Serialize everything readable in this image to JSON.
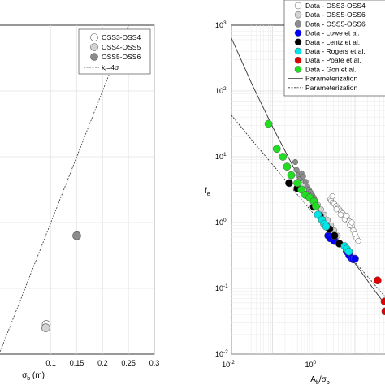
{
  "chart_data": [
    {
      "type": "scatter",
      "xlabel_symbol": "σ",
      "xlabel_subscript": "b",
      "xlabel_unit": " (m)",
      "xlim": [
        0,
        0.3
      ],
      "ylim": [
        0,
        1
      ],
      "x_ticks": [
        0.1,
        0.15,
        0.2,
        0.25,
        0.3
      ],
      "x_tick_labels": [
        "0.1",
        "0.15",
        "0.2",
        "0.25",
        "0.3"
      ],
      "grid": true,
      "legend_position": "top-right",
      "series": [
        {
          "name": "OSS3-OSS4",
          "color": "#ffffff",
          "points": [
            [
              0.091,
              0.09
            ]
          ]
        },
        {
          "name": "OSS4-OSS5",
          "color": "#d3d3d3",
          "points": [
            [
              0.09,
              0.08
            ]
          ]
        },
        {
          "name": "OSS5-OSS6",
          "color": "#8c8c8c",
          "points": [
            [
              0.15,
              0.36
            ]
          ]
        }
      ],
      "reference_line": {
        "label_main": "k",
        "label_sub": "r",
        "label_rest": "=4σ",
        "style": "dashed",
        "points": [
          [
            0.0,
            0.0
          ],
          [
            0.3,
            1.2
          ]
        ]
      }
    },
    {
      "type": "scatter",
      "x_scale": "log",
      "y_scale": "log",
      "xlabel_main": "A",
      "xlabel_sub1": "b",
      "xlabel_mid": "/σ",
      "xlabel_sub2": "b",
      "ylabel_main": "f",
      "ylabel_sub": "e",
      "x_log_range": [
        -2,
        1.75
      ],
      "y_log_range": [
        -2,
        3
      ],
      "x_ticks": [
        -2,
        0
      ],
      "x_tick_labels": [
        "10",
        "10"
      ],
      "x_tick_exponents": [
        "-2",
        "0"
      ],
      "y_ticks": [
        -2,
        -1,
        0,
        1,
        2,
        3
      ],
      "y_tick_labels": [
        "10",
        "10",
        "10",
        "10",
        "10",
        "10"
      ],
      "y_tick_exponents": [
        "-2",
        "-1",
        "0",
        "1",
        "2",
        "3"
      ],
      "grid": true,
      "legend_position": "top-right",
      "series": [
        {
          "name": "Data - OSS3-OSS4",
          "color": "#ffffff",
          "points": [
            [
              0.4,
              0.35
            ],
            [
              0.42,
              0.33
            ],
            [
              0.46,
              0.3
            ],
            [
              0.5,
              0.28
            ],
            [
              0.54,
              0.25
            ],
            [
              0.58,
              0.22
            ],
            [
              0.62,
              0.2
            ],
            [
              0.66,
              0.17
            ],
            [
              0.7,
              0.14
            ],
            [
              0.74,
              0.11
            ],
            [
              0.78,
              0.08
            ],
            [
              0.82,
              0.05
            ],
            [
              0.86,
              0.02
            ],
            [
              0.9,
              -0.02
            ],
            [
              0.93,
              -0.06
            ],
            [
              0.96,
              -0.12
            ],
            [
              1.0,
              -0.18
            ],
            [
              1.04,
              -0.24
            ],
            [
              1.08,
              -0.28
            ],
            [
              0.45,
              0.4
            ],
            [
              0.55,
              0.2
            ],
            [
              0.65,
              0.12
            ],
            [
              0.75,
              0.05
            ],
            [
              0.8,
              0.1
            ],
            [
              0.88,
              -0.04
            ],
            [
              0.92,
              0.0
            ]
          ]
        },
        {
          "name": "Data - OSS5-OSS6",
          "color": "#d3d3d3",
          "points": [
            [
              -0.32,
              0.62
            ],
            [
              -0.25,
              0.58
            ],
            [
              -0.18,
              0.5
            ],
            [
              -0.1,
              0.45
            ],
            [
              -0.05,
              0.4
            ],
            [
              0.02,
              0.35
            ],
            [
              0.1,
              0.27
            ],
            [
              0.18,
              0.2
            ],
            [
              0.26,
              0.12
            ],
            [
              0.34,
              0.04
            ],
            [
              0.42,
              -0.04
            ],
            [
              0.5,
              -0.12
            ],
            [
              0.58,
              -0.2
            ]
          ]
        },
        {
          "name": "Data - OSS5-OSS6",
          "color": "#8c8c8c",
          "points": [
            [
              -0.45,
              0.92
            ],
            [
              -0.42,
              0.8
            ],
            [
              -0.38,
              0.72
            ],
            [
              -0.34,
              0.66
            ],
            [
              -0.3,
              0.75
            ],
            [
              -0.26,
              0.7
            ],
            [
              -0.2,
              0.62
            ],
            [
              -0.16,
              0.55
            ],
            [
              -0.12,
              0.5
            ],
            [
              -0.08,
              0.46
            ],
            [
              -0.04,
              0.42
            ],
            [
              0.0,
              0.38
            ]
          ]
        },
        {
          "name": "Data - Lowe et al.",
          "color": "#0000ff",
          "points": [
            [
              0.35,
              -0.2
            ],
            [
              0.4,
              -0.24
            ],
            [
              0.5,
              -0.28
            ],
            [
              0.8,
              -0.44
            ],
            [
              0.86,
              -0.5
            ],
            [
              0.92,
              -0.54
            ],
            [
              0.96,
              -0.56
            ],
            [
              1.0,
              -0.55
            ]
          ]
        },
        {
          "name": "Data - Lentz et al.",
          "color": "#000000",
          "points": [
            [
              -0.6,
              0.6
            ],
            [
              -0.4,
              0.52
            ],
            [
              -0.2,
              0.42
            ],
            [
              0.0,
              0.24
            ],
            [
              0.15,
              0.1
            ],
            [
              0.3,
              -0.05
            ],
            [
              0.38,
              -0.1
            ],
            [
              0.5,
              -0.2
            ],
            [
              0.62,
              -0.32
            ]
          ]
        },
        {
          "name": "Data - Rogers et al.",
          "color": "#00e5e5",
          "points": [
            [
              0.1,
              0.12
            ],
            [
              0.2,
              0.04
            ],
            [
              0.25,
              -0.02
            ],
            [
              0.3,
              -0.06
            ],
            [
              0.75,
              -0.36
            ],
            [
              0.8,
              -0.4
            ],
            [
              0.85,
              -0.44
            ]
          ]
        },
        {
          "name": "Data - Poate et al.",
          "color": "#e00000",
          "points": [
            [
              1.55,
              -0.88
            ],
            [
              1.72,
              -1.2
            ],
            [
              1.74,
              -1.35
            ]
          ]
        },
        {
          "name": "Data - Gon et al.",
          "color": "#22dd22",
          "points": [
            [
              -1.1,
              1.5
            ],
            [
              -0.9,
              1.12
            ],
            [
              -0.75,
              1.0
            ],
            [
              -0.65,
              0.85
            ],
            [
              -0.55,
              0.72
            ],
            [
              -0.4,
              0.6
            ],
            [
              -0.3,
              0.5
            ],
            [
              -0.2,
              0.42
            ],
            [
              -0.1,
              0.38
            ],
            [
              0.0,
              0.32
            ],
            [
              0.05,
              0.25
            ]
          ]
        }
      ],
      "curves": [
        {
          "name": "Parameterization",
          "style": "solid",
          "log_points": [
            [
              -2,
              2.8
            ],
            [
              -1.5,
              2.1
            ],
            [
              -1.0,
              1.45
            ],
            [
              -0.5,
              0.85
            ],
            [
              0.0,
              0.3
            ],
            [
              0.5,
              -0.18
            ],
            [
              1.0,
              -0.62
            ],
            [
              1.5,
              -1.05
            ],
            [
              1.75,
              -1.26
            ]
          ]
        },
        {
          "name": "Parameterization",
          "style": "dashed",
          "log_points": [
            [
              -2,
              1.63
            ],
            [
              -1.5,
              1.25
            ],
            [
              -1.0,
              0.88
            ],
            [
              -0.5,
              0.5
            ],
            [
              0.0,
              0.13
            ],
            [
              0.5,
              -0.24
            ],
            [
              1.0,
              -0.6
            ],
            [
              1.5,
              -0.96
            ],
            [
              1.75,
              -1.14
            ]
          ]
        }
      ]
    }
  ]
}
